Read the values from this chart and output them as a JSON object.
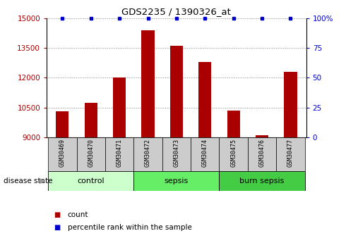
{
  "title": "GDS2235 / 1390326_at",
  "samples": [
    "GSM30469",
    "GSM30470",
    "GSM30471",
    "GSM30472",
    "GSM30473",
    "GSM30474",
    "GSM30475",
    "GSM30476",
    "GSM30477"
  ],
  "counts": [
    10300,
    10750,
    12000,
    14400,
    13600,
    12800,
    10350,
    9100,
    12300
  ],
  "percentile_ranks": [
    100,
    100,
    100,
    100,
    100,
    100,
    100,
    100,
    100
  ],
  "ylim_left": [
    9000,
    15000
  ],
  "ylim_right": [
    0,
    100
  ],
  "yticks_left": [
    9000,
    10500,
    12000,
    13500,
    15000
  ],
  "yticks_right": [
    0,
    25,
    50,
    75,
    100
  ],
  "ytick_labels_right": [
    "0",
    "25",
    "50",
    "75",
    "100%"
  ],
  "groups": [
    {
      "label": "control",
      "indices": [
        0,
        1,
        2
      ],
      "color": "#ccffcc"
    },
    {
      "label": "sepsis",
      "indices": [
        3,
        4,
        5
      ],
      "color": "#66ee66"
    },
    {
      "label": "burn sepsis",
      "indices": [
        6,
        7,
        8
      ],
      "color": "#44cc44"
    }
  ],
  "bar_color": "#aa0000",
  "dot_color": "#0000cc",
  "tick_bg_color": "#cccccc",
  "grid_color": "#888888",
  "disease_state_label": "disease state",
  "legend_items": [
    "count",
    "percentile rank within the sample"
  ],
  "legend_colors": [
    "#aa0000",
    "#0000cc"
  ]
}
